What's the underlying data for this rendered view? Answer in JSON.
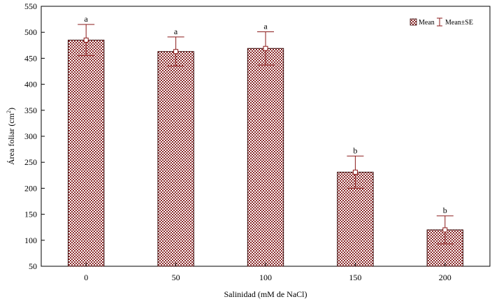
{
  "chart_data": {
    "type": "bar",
    "categories": [
      "0",
      "50",
      "100",
      "150",
      "200"
    ],
    "series": [
      {
        "values": [
          485,
          463,
          469,
          231,
          120
        ],
        "errors": [
          30,
          28,
          32,
          31,
          27
        ],
        "letters": [
          "a",
          "a",
          "a",
          "b",
          "b"
        ]
      }
    ],
    "xlabel": "Salinidad (mM de NaCl)",
    "ylabel": "Área foliar (cm",
    "ylabel_sup": "2",
    "ylabel_suffix": ")",
    "ylim": [
      50,
      550
    ],
    "yticks": [
      50,
      100,
      150,
      200,
      250,
      300,
      350,
      400,
      450,
      500,
      550
    ],
    "grid": false,
    "legend": {
      "position": "top-right",
      "entries": [
        "Mean",
        "Mean±SE"
      ]
    },
    "colors": {
      "bar_fill": "#8b2a2a",
      "bar_stroke": "#3a0a0a",
      "error_bar": "#8b1a1a",
      "axis": "#000000"
    }
  }
}
